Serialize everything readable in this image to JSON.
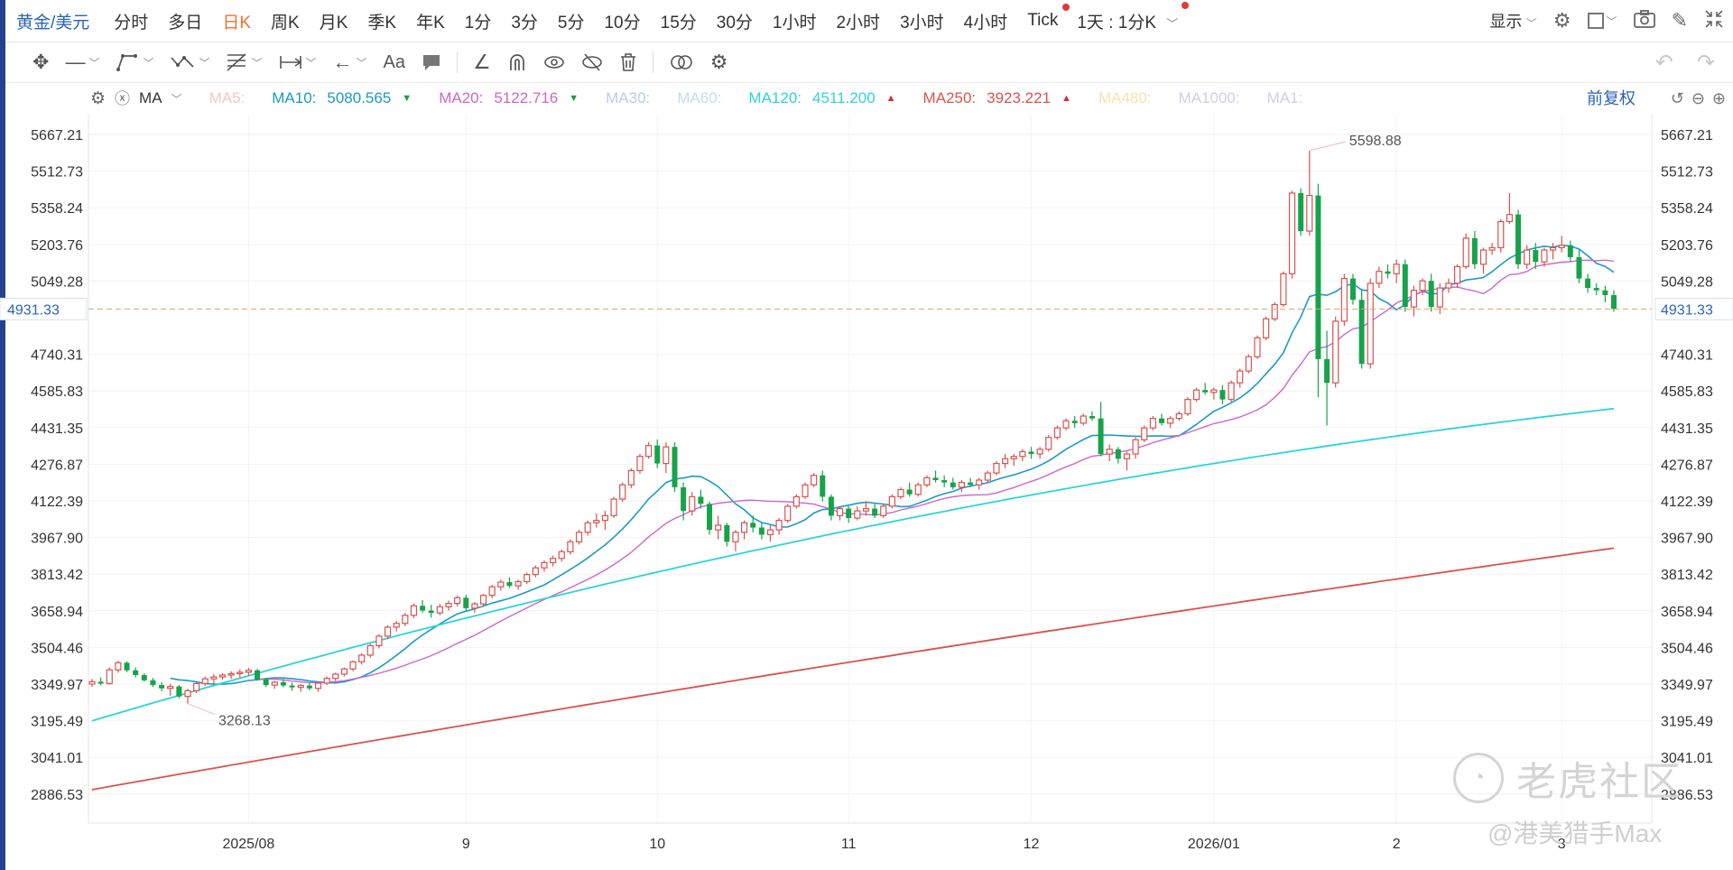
{
  "header": {
    "symbol": "黄金/美元",
    "tabs": [
      {
        "label": "分时",
        "active": false,
        "dot": false
      },
      {
        "label": "多日",
        "active": false,
        "dot": false
      },
      {
        "label": "日K",
        "active": true,
        "dot": false
      },
      {
        "label": "周K",
        "active": false,
        "dot": false
      },
      {
        "label": "月K",
        "active": false,
        "dot": false
      },
      {
        "label": "季K",
        "active": false,
        "dot": false
      },
      {
        "label": "年K",
        "active": false,
        "dot": false
      },
      {
        "label": "1分",
        "active": false,
        "dot": false
      },
      {
        "label": "3分",
        "active": false,
        "dot": false
      },
      {
        "label": "5分",
        "active": false,
        "dot": false
      },
      {
        "label": "10分",
        "active": false,
        "dot": false
      },
      {
        "label": "15分",
        "active": false,
        "dot": false
      },
      {
        "label": "30分",
        "active": false,
        "dot": false
      },
      {
        "label": "1小时",
        "active": false,
        "dot": false
      },
      {
        "label": "2小时",
        "active": false,
        "dot": false
      },
      {
        "label": "3小时",
        "active": false,
        "dot": false
      },
      {
        "label": "4小时",
        "active": false,
        "dot": false
      },
      {
        "label": "Tick",
        "active": false,
        "dot": true
      }
    ],
    "interval_select": "1天 : 1分K",
    "display_label": "显示",
    "icons": [
      "gear-icon",
      "checkbox-icon",
      "camera-icon",
      "pen-icon",
      "collapse-icon"
    ]
  },
  "drawing_tools": [
    "move-icon",
    "line-tool-icon",
    "path-tool-icon",
    "polyline-tool-icon",
    "fib-tool-icon",
    "measure-tool-icon",
    "arrow-tool-icon",
    "text-tool-icon",
    "note-tool-icon",
    "pencil-tool-icon",
    "magnet-icon",
    "eye-icon",
    "hide-icon",
    "trash-icon",
    "link-icon",
    "settings-icon"
  ],
  "text_tool_label": "Aa",
  "ma_bar": {
    "indicator": "MA",
    "items": [
      {
        "name": "MA5:",
        "value": "",
        "color": "#f4c7c0",
        "trend": ""
      },
      {
        "name": "MA10:",
        "value": "5080.565",
        "color": "#1c9ac7",
        "trend": "down"
      },
      {
        "name": "MA20:",
        "value": "5122.716",
        "color": "#cc66cc",
        "trend": "down"
      },
      {
        "name": "MA30:",
        "value": "",
        "color": "#b8cde8",
        "trend": ""
      },
      {
        "name": "MA60:",
        "value": "",
        "color": "#bfe0ea",
        "trend": ""
      },
      {
        "name": "MA120:",
        "value": "4511.200",
        "color": "#2dd4d8",
        "trend": "up"
      },
      {
        "name": "MA250:",
        "value": "3923.221",
        "color": "#d9534f",
        "trend": "up"
      },
      {
        "name": "MA480:",
        "value": "",
        "color": "#f6e2b0",
        "trend": ""
      },
      {
        "name": "MA1000:",
        "value": "",
        "color": "#c9d2e6",
        "trend": ""
      },
      {
        "name": "MA1:",
        "value": "",
        "color": "#c9d2e6",
        "trend": ""
      }
    ],
    "restore_label": "前复权"
  },
  "chart_data": {
    "type": "candlestick",
    "instrument": "黄金/美元",
    "timeframe": "日K",
    "y_ticks": [
      "5667.21",
      "5512.73",
      "5358.24",
      "5203.76",
      "5049.28",
      "4740.31",
      "4585.83",
      "4431.35",
      "4276.87",
      "4122.39",
      "3967.90",
      "3813.42",
      "3658.94",
      "3504.46",
      "3349.97",
      "3195.49",
      "3041.01",
      "2886.53"
    ],
    "ylim": [
      2850,
      5700
    ],
    "x_labels": [
      "2025/08",
      "9",
      "10",
      "11",
      "12",
      "2026/01",
      "2",
      "3"
    ],
    "current_price": "4931.33",
    "annotations": [
      {
        "text": "5598.88",
        "type": "high"
      },
      {
        "text": "3268.13",
        "type": "low"
      }
    ],
    "candles": [
      [
        3350,
        3372,
        3338,
        3360
      ],
      [
        3360,
        3378,
        3345,
        3352
      ],
      [
        3352,
        3420,
        3348,
        3410
      ],
      [
        3410,
        3448,
        3398,
        3440
      ],
      [
        3440,
        3446,
        3400,
        3408
      ],
      [
        3408,
        3420,
        3378,
        3388
      ],
      [
        3388,
        3396,
        3360,
        3366
      ],
      [
        3366,
        3376,
        3338,
        3346
      ],
      [
        3346,
        3358,
        3320,
        3332
      ],
      [
        3332,
        3352,
        3300,
        3340
      ],
      [
        3340,
        3346,
        3290,
        3298
      ],
      [
        3298,
        3330,
        3268,
        3322
      ],
      [
        3322,
        3360,
        3312,
        3352
      ],
      [
        3352,
        3382,
        3342,
        3372
      ],
      [
        3372,
        3392,
        3350,
        3380
      ],
      [
        3380,
        3396,
        3368,
        3388
      ],
      [
        3388,
        3404,
        3372,
        3394
      ],
      [
        3394,
        3412,
        3378,
        3400
      ],
      [
        3400,
        3418,
        3384,
        3408
      ],
      [
        3408,
        3414,
        3364,
        3370
      ],
      [
        3370,
        3376,
        3338,
        3346
      ],
      [
        3346,
        3364,
        3330,
        3358
      ],
      [
        3358,
        3372,
        3336,
        3344
      ],
      [
        3344,
        3356,
        3322,
        3336
      ],
      [
        3336,
        3350,
        3318,
        3344
      ],
      [
        3344,
        3358,
        3324,
        3332
      ],
      [
        3332,
        3360,
        3318,
        3354
      ],
      [
        3354,
        3382,
        3346,
        3374
      ],
      [
        3374,
        3398,
        3364,
        3392
      ],
      [
        3392,
        3420,
        3382,
        3414
      ],
      [
        3414,
        3450,
        3404,
        3444
      ],
      [
        3444,
        3480,
        3432,
        3472
      ],
      [
        3472,
        3520,
        3462,
        3512
      ],
      [
        3512,
        3560,
        3500,
        3552
      ],
      [
        3552,
        3598,
        3540,
        3590
      ],
      [
        3590,
        3616,
        3572,
        3606
      ],
      [
        3606,
        3650,
        3594,
        3640
      ],
      [
        3640,
        3690,
        3628,
        3680
      ],
      [
        3680,
        3704,
        3650,
        3660
      ],
      [
        3660,
        3684,
        3630,
        3650
      ],
      [
        3650,
        3688,
        3640,
        3676
      ],
      [
        3676,
        3702,
        3660,
        3690
      ],
      [
        3690,
        3724,
        3678,
        3714
      ],
      [
        3714,
        3726,
        3660,
        3670
      ],
      [
        3670,
        3696,
        3650,
        3688
      ],
      [
        3688,
        3730,
        3676,
        3724
      ],
      [
        3724,
        3768,
        3712,
        3760
      ],
      [
        3760,
        3790,
        3744,
        3780
      ],
      [
        3780,
        3800,
        3756,
        3764
      ],
      [
        3764,
        3790,
        3748,
        3782
      ],
      [
        3782,
        3820,
        3772,
        3812
      ],
      [
        3812,
        3850,
        3800,
        3840
      ],
      [
        3840,
        3872,
        3824,
        3862
      ],
      [
        3862,
        3892,
        3846,
        3880
      ],
      [
        3880,
        3918,
        3866,
        3908
      ],
      [
        3908,
        3960,
        3896,
        3950
      ],
      [
        3950,
        4000,
        3938,
        3990
      ],
      [
        3990,
        4040,
        3976,
        4030
      ],
      [
        4030,
        4070,
        4010,
        4040
      ],
      [
        4040,
        4080,
        4000,
        4060
      ],
      [
        4060,
        4140,
        4050,
        4130
      ],
      [
        4130,
        4200,
        4118,
        4190
      ],
      [
        4190,
        4260,
        4176,
        4250
      ],
      [
        4250,
        4320,
        4236,
        4310
      ],
      [
        4310,
        4370,
        4300,
        4356
      ],
      [
        4356,
        4381,
        4260,
        4280
      ],
      [
        4280,
        4370,
        4240,
        4350
      ],
      [
        4350,
        4370,
        4160,
        4180
      ],
      [
        4180,
        4200,
        4040,
        4080
      ],
      [
        4080,
        4160,
        4060,
        4140
      ],
      [
        4140,
        4170,
        4090,
        4110
      ],
      [
        4110,
        4120,
        3980,
        4000
      ],
      [
        4000,
        4060,
        3960,
        4020
      ],
      [
        4020,
        4030,
        3930,
        3950
      ],
      [
        3950,
        4000,
        3910,
        3990
      ],
      [
        3990,
        4040,
        3960,
        4030
      ],
      [
        4030,
        4060,
        3990,
        4010
      ],
      [
        4010,
        4030,
        3960,
        3980
      ],
      [
        3980,
        4020,
        3950,
        4000
      ],
      [
        4000,
        4050,
        3980,
        4040
      ],
      [
        4040,
        4110,
        4030,
        4100
      ],
      [
        4100,
        4150,
        4090,
        4140
      ],
      [
        4140,
        4200,
        4130,
        4190
      ],
      [
        4190,
        4240,
        4180,
        4230
      ],
      [
        4230,
        4250,
        4120,
        4140
      ],
      [
        4140,
        4150,
        4040,
        4060
      ],
      [
        4060,
        4100,
        4040,
        4090
      ],
      [
        4090,
        4100,
        4030,
        4050
      ],
      [
        4050,
        4100,
        4040,
        4080
      ],
      [
        4080,
        4120,
        4060,
        4090
      ],
      [
        4090,
        4110,
        4050,
        4060
      ],
      [
        4060,
        4110,
        4050,
        4100
      ],
      [
        4100,
        4150,
        4090,
        4140
      ],
      [
        4140,
        4180,
        4130,
        4170
      ],
      [
        4170,
        4200,
        4140,
        4150
      ],
      [
        4150,
        4200,
        4140,
        4190
      ],
      [
        4190,
        4230,
        4180,
        4220
      ],
      [
        4220,
        4250,
        4200,
        4210
      ],
      [
        4210,
        4230,
        4180,
        4200
      ],
      [
        4200,
        4220,
        4170,
        4180
      ],
      [
        4180,
        4210,
        4160,
        4200
      ],
      [
        4200,
        4220,
        4180,
        4190
      ],
      [
        4190,
        4220,
        4170,
        4210
      ],
      [
        4210,
        4250,
        4200,
        4240
      ],
      [
        4240,
        4290,
        4230,
        4280
      ],
      [
        4280,
        4320,
        4260,
        4300
      ],
      [
        4300,
        4320,
        4270,
        4310
      ],
      [
        4310,
        4340,
        4290,
        4330
      ],
      [
        4330,
        4350,
        4300,
        4320
      ],
      [
        4320,
        4350,
        4300,
        4340
      ],
      [
        4340,
        4400,
        4330,
        4390
      ],
      [
        4390,
        4440,
        4380,
        4430
      ],
      [
        4430,
        4470,
        4420,
        4460
      ],
      [
        4460,
        4480,
        4430,
        4450
      ],
      [
        4450,
        4490,
        4440,
        4480
      ],
      [
        4480,
        4500,
        4460,
        4470
      ],
      [
        4470,
        4540,
        4310,
        4320
      ],
      [
        4320,
        4360,
        4290,
        4340
      ],
      [
        4340,
        4350,
        4280,
        4300
      ],
      [
        4300,
        4330,
        4250,
        4320
      ],
      [
        4320,
        4390,
        4300,
        4380
      ],
      [
        4380,
        4440,
        4370,
        4430
      ],
      [
        4430,
        4480,
        4420,
        4470
      ],
      [
        4470,
        4490,
        4440,
        4450
      ],
      [
        4450,
        4480,
        4430,
        4470
      ],
      [
        4470,
        4500,
        4460,
        4490
      ],
      [
        4490,
        4560,
        4480,
        4550
      ],
      [
        4550,
        4600,
        4540,
        4590
      ],
      [
        4590,
        4620,
        4570,
        4580
      ],
      [
        4580,
        4600,
        4550,
        4590
      ],
      [
        4590,
        4610,
        4530,
        4550
      ],
      [
        4550,
        4630,
        4540,
        4620
      ],
      [
        4620,
        4680,
        4600,
        4670
      ],
      [
        4670,
        4740,
        4660,
        4730
      ],
      [
        4730,
        4820,
        4720,
        4810
      ],
      [
        4810,
        4900,
        4800,
        4890
      ],
      [
        4890,
        4960,
        4880,
        4950
      ],
      [
        4950,
        5090,
        4940,
        5080
      ],
      [
        5080,
        5430,
        5060,
        5420
      ],
      [
        5420,
        5440,
        5240,
        5260
      ],
      [
        5260,
        5598.88,
        5240,
        5410
      ],
      [
        5410,
        5460,
        4560,
        4720
      ],
      [
        4720,
        4840,
        4440,
        4620
      ],
      [
        4620,
        4900,
        4600,
        4880
      ],
      [
        4880,
        5080,
        4860,
        5060
      ],
      [
        5060,
        5080,
        4950,
        4970
      ],
      [
        4970,
        5010,
        4680,
        4700
      ],
      [
        4700,
        5060,
        4680,
        5040
      ],
      [
        5040,
        5110,
        5020,
        5090
      ],
      [
        5090,
        5120,
        5060,
        5080
      ],
      [
        5080,
        5140,
        5040,
        5120
      ],
      [
        5120,
        5140,
        4920,
        4940
      ],
      [
        4940,
        5030,
        4900,
        5010
      ],
      [
        5010,
        5060,
        4990,
        5050
      ],
      [
        5050,
        5080,
        4920,
        4940
      ],
      [
        4940,
        5040,
        4910,
        5020
      ],
      [
        5020,
        5060,
        5000,
        5040
      ],
      [
        5040,
        5120,
        5020,
        5110
      ],
      [
        5110,
        5250,
        5100,
        5230
      ],
      [
        5230,
        5260,
        5100,
        5120
      ],
      [
        5120,
        5190,
        5080,
        5180
      ],
      [
        5180,
        5210,
        5160,
        5190
      ],
      [
        5190,
        5310,
        5170,
        5300
      ],
      [
        5300,
        5420,
        5290,
        5330
      ],
      [
        5330,
        5350,
        5100,
        5120
      ],
      [
        5120,
        5200,
        5100,
        5180
      ],
      [
        5180,
        5210,
        5100,
        5130
      ],
      [
        5130,
        5190,
        5110,
        5180
      ],
      [
        5180,
        5210,
        5140,
        5190
      ],
      [
        5190,
        5240,
        5170,
        5200
      ],
      [
        5200,
        5220,
        5130,
        5150
      ],
      [
        5150,
        5180,
        5040,
        5060
      ],
      [
        5060,
        5080,
        5000,
        5020
      ],
      [
        5020,
        5040,
        4990,
        5010
      ],
      [
        5010,
        5030,
        4960,
        4990
      ],
      [
        4990,
        5010,
        4920,
        4931.33
      ]
    ],
    "ma_series": [
      "MA10",
      "MA20",
      "MA120",
      "MA250"
    ]
  },
  "watermark": {
    "brand": "老虎社区",
    "author": "@港美猎手Max"
  }
}
